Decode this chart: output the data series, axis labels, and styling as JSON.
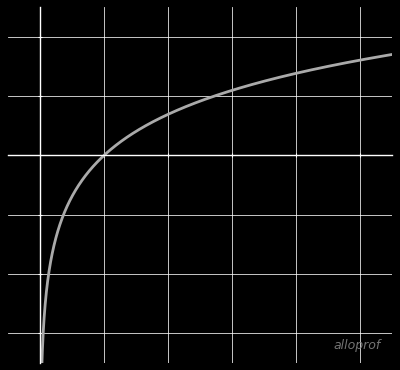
{
  "background_color": "#000000",
  "grid_color": "#ffffff",
  "curve_color": "#aaaaaa",
  "curve_linewidth": 2.0,
  "watermark_text": "alloprof",
  "watermark_color": "#888888",
  "watermark_fontsize": 9,
  "xlim": [
    -0.5,
    5.5
  ],
  "ylim": [
    -3.5,
    2.5
  ],
  "x_ticks": [
    1,
    2,
    3,
    4,
    5
  ],
  "y_ticks": [
    -3,
    -2,
    -1,
    1,
    2
  ],
  "tick_color": "#ffffff",
  "axis_color": "#ffffff",
  "curve_x_start": 0.015,
  "curve_x_end": 5.5,
  "figsize": [
    4.0,
    3.7
  ],
  "dpi": 100
}
